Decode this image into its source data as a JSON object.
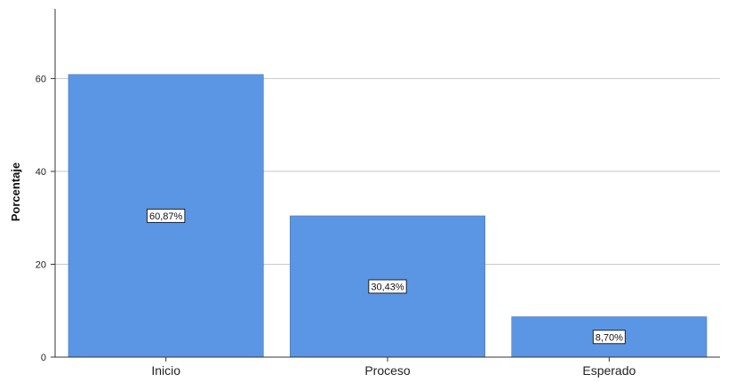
{
  "chart_data": {
    "type": "bar",
    "categories": [
      "Inicio",
      "Proceso",
      "Esperado"
    ],
    "values": [
      60.87,
      30.43,
      8.7
    ],
    "data_labels": [
      "60,87%",
      "30,43%",
      "8,70%"
    ],
    "title": "",
    "xlabel": "",
    "ylabel": "Porcentaje",
    "ylim": [
      0,
      75
    ],
    "yticks": [
      0,
      20,
      40,
      60
    ],
    "ytick_labels": [
      "0",
      "20",
      "40",
      "60"
    ],
    "grid": true,
    "bar_color": "#5a96e3"
  }
}
